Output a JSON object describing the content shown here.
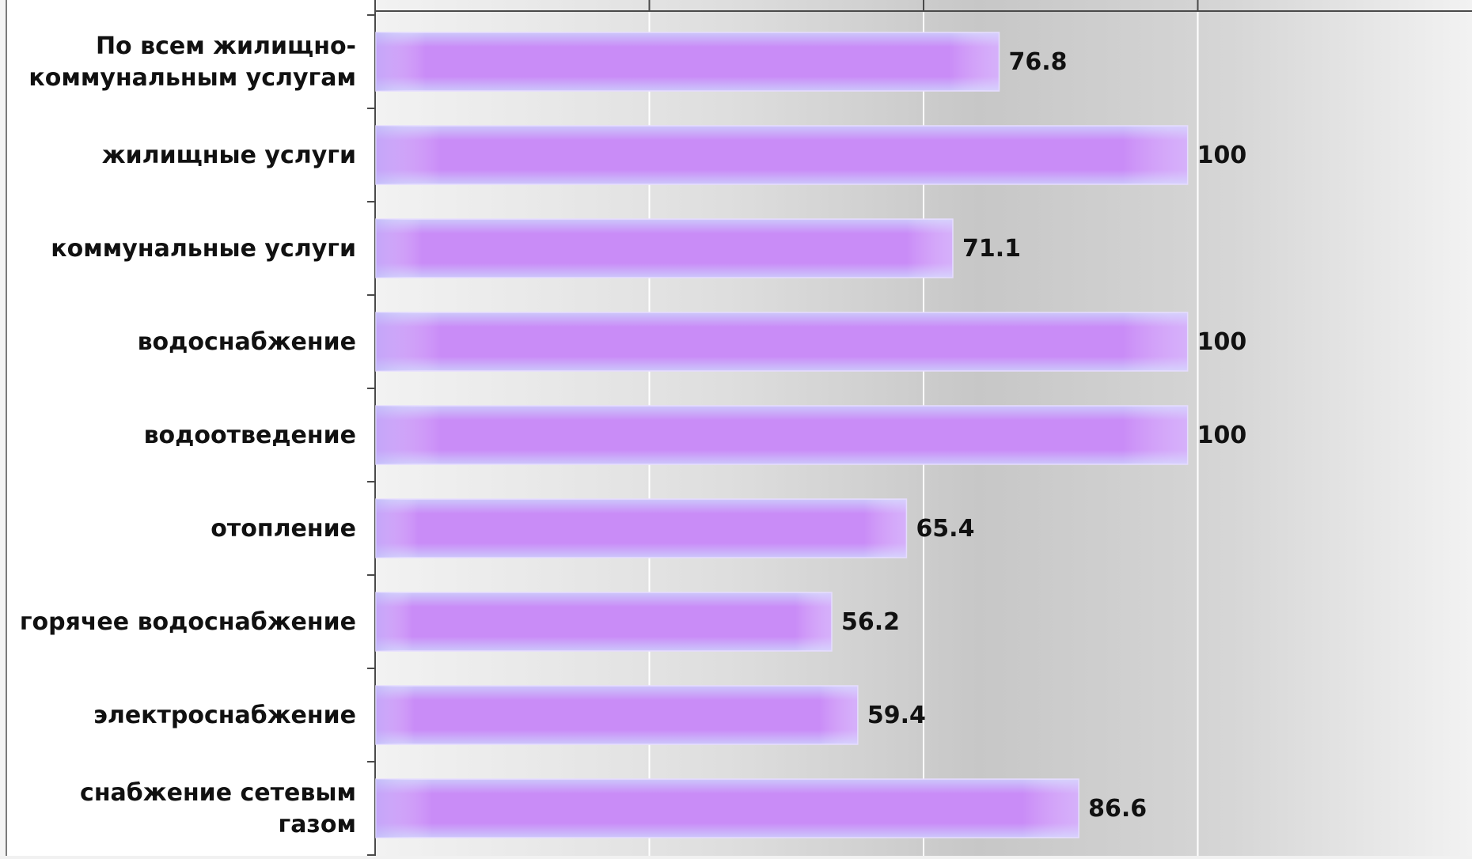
{
  "chart_data": {
    "type": "bar",
    "orientation": "horizontal",
    "categories": [
      "По всем жилищно-коммунальным услугам",
      "жилищные услуги",
      "коммунальные услуги",
      "водоснабжение",
      "водоотведение",
      "отопление",
      "горячее водоснабжение",
      "электроснабжение",
      "снабжение сетевым газом"
    ],
    "category_lines": [
      [
        "По всем жилищно-",
        "коммунальным услугам"
      ],
      [
        "жилищные услуги"
      ],
      [
        "коммунальные услуги"
      ],
      [
        "водоснабжение"
      ],
      [
        "водоотведение"
      ],
      [
        "отопление"
      ],
      [
        "горячее водоснабжение"
      ],
      [
        "электроснабжение"
      ],
      [
        "снабжение сетевым",
        "газом"
      ]
    ],
    "values": [
      76.8,
      100,
      71.1,
      100,
      100,
      65.4,
      56.2,
      59.4,
      86.6
    ],
    "data_labels": [
      "76.8",
      "100",
      "71.1",
      "100",
      "100",
      "65.4",
      "56.2",
      "59.4",
      "86.6"
    ],
    "xlim": [
      0,
      135
    ],
    "x_gridlines": [
      33.75,
      67.5,
      101.25
    ],
    "title": "",
    "xlabel": "",
    "ylabel": "",
    "grid": true,
    "legend": "none",
    "colors": {
      "bar_main": "#c98cf7",
      "bar_light": "#ccc7fb",
      "bar_edge": "#e6dcff",
      "panel_dark": "#c7c7c7",
      "panel_light": "#f2f2f2",
      "gridline": "#ffffff",
      "axis": "#4a4a4a",
      "text": "#111111"
    }
  }
}
